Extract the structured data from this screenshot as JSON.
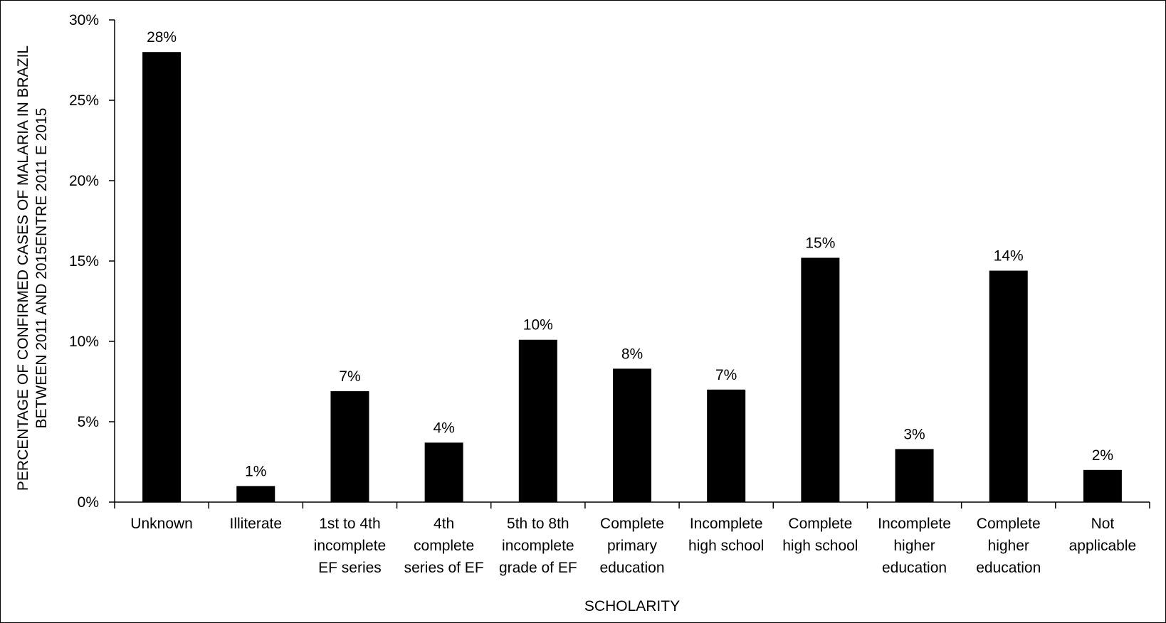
{
  "chart_data": {
    "type": "bar",
    "title": "",
    "xlabel": "SCHOLARITY",
    "ylabel": "PERCENTAGE OF CONFIRMED CASES OF MALARIA IN BRAZIL BETWEEN 2011 AND 2015ENTRE 2011 E 2015",
    "ylabel_lines": [
      "PERCENTAGE OF CONFIRMED CASES OF MALARIA IN BRAZIL",
      "BETWEEN 2011 AND 2015ENTRE 2011 E 2015"
    ],
    "ylim": [
      0,
      30
    ],
    "yticks": [
      0,
      5,
      10,
      15,
      20,
      25,
      30
    ],
    "ytick_labels": [
      "0%",
      "5%",
      "10%",
      "15%",
      "20%",
      "25%",
      "30%"
    ],
    "grid": false,
    "legend": "none",
    "bar_color": "#000000",
    "categories": [
      "Unknown",
      "Illiterate",
      "1st to 4th incomplete EF series",
      "4th complete series of EF",
      "5th to 8th incomplete grade of EF",
      "Complete primary education",
      "Incomplete high school",
      "Complete high school",
      "Incomplete higher education",
      "Complete higher education",
      "Not applicable"
    ],
    "category_label_lines": [
      [
        "Unknown"
      ],
      [
        "Illiterate"
      ],
      [
        "1st to 4th",
        "incomplete",
        "EF series"
      ],
      [
        "4th",
        "complete",
        "series of EF"
      ],
      [
        "5th to 8th",
        "incomplete",
        "grade of EF"
      ],
      [
        "Complete",
        "primary",
        "education"
      ],
      [
        "Incomplete",
        "high school"
      ],
      [
        "Complete",
        "high school"
      ],
      [
        "Incomplete",
        "higher",
        "education"
      ],
      [
        "Complete",
        "higher",
        "education"
      ],
      [
        "Not",
        "applicable"
      ]
    ],
    "values": [
      28.0,
      1.0,
      6.9,
      3.7,
      10.1,
      8.3,
      7.0,
      15.2,
      3.3,
      14.4,
      2.0
    ],
    "data_labels": [
      "28%",
      "1%",
      "7%",
      "4%",
      "10%",
      "8%",
      "7%",
      "15%",
      "3%",
      "14%",
      "2%"
    ]
  }
}
